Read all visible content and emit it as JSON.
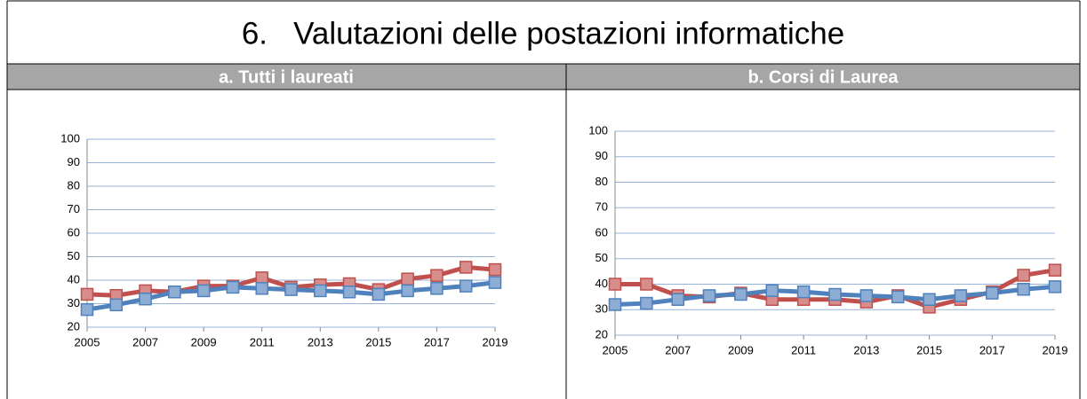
{
  "title": "6.   Valutazioni delle postazioni informatiche",
  "chart_data": [
    {
      "type": "line",
      "title": "a. Tutti i laureati",
      "x": [
        2005,
        2006,
        2007,
        2008,
        2009,
        2010,
        2011,
        2012,
        2013,
        2014,
        2015,
        2016,
        2017,
        2018,
        2019
      ],
      "xlim": [
        2005,
        2019
      ],
      "xticks": [
        2005,
        2007,
        2009,
        2011,
        2013,
        2015,
        2017,
        2019
      ],
      "ylim": [
        20,
        100
      ],
      "yticks": [
        20,
        30,
        40,
        50,
        60,
        70,
        80,
        90,
        100
      ],
      "grid": true,
      "series": [
        {
          "color": "#c0504d",
          "values": [
            34,
            33.5,
            35.5,
            35,
            37.5,
            37.5,
            41,
            37,
            38,
            38.5,
            36,
            40.5,
            42,
            45.5,
            44.5
          ]
        },
        {
          "color": "#4f81bd",
          "values": [
            27.5,
            29.5,
            32,
            35,
            35.5,
            37,
            36.5,
            36,
            35.5,
            35,
            34,
            35.5,
            36.5,
            37.5,
            39
          ]
        }
      ]
    },
    {
      "type": "line",
      "title": "b. Corsi di Laurea",
      "x": [
        2005,
        2006,
        2007,
        2008,
        2009,
        2010,
        2011,
        2012,
        2013,
        2014,
        2015,
        2016,
        2017,
        2018,
        2019
      ],
      "xlim": [
        2005,
        2019
      ],
      "xticks": [
        2005,
        2007,
        2009,
        2011,
        2013,
        2015,
        2017,
        2019
      ],
      "ylim": [
        20,
        100
      ],
      "yticks": [
        20,
        30,
        40,
        50,
        60,
        70,
        80,
        90,
        100
      ],
      "grid": true,
      "series": [
        {
          "color": "#c0504d",
          "values": [
            40,
            40,
            35.5,
            35,
            36.5,
            34,
            34,
            34,
            33,
            35.5,
            31,
            34,
            37,
            43.5,
            45.5
          ]
        },
        {
          "color": "#4f81bd",
          "values": [
            32,
            32.5,
            34,
            35.5,
            36,
            37.5,
            37,
            36,
            35.5,
            35,
            34,
            35.5,
            36.5,
            38,
            39
          ]
        }
      ]
    }
  ]
}
